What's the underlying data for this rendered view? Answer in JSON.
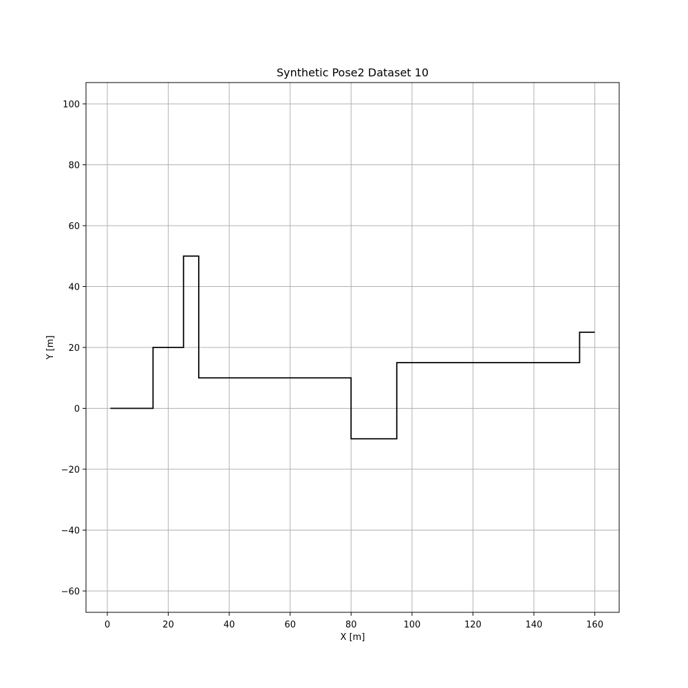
{
  "chart_data": {
    "type": "line",
    "title": "Synthetic Pose2 Dataset 10",
    "xlabel": "X [m]",
    "ylabel": "Y [m]",
    "xlim": [
      -7,
      168
    ],
    "ylim": [
      -67,
      107
    ],
    "xticks": [
      0,
      20,
      40,
      60,
      80,
      100,
      120,
      140,
      160
    ],
    "yticks": [
      -60,
      -40,
      -20,
      0,
      20,
      40,
      60,
      80,
      100
    ],
    "grid": true,
    "series": [
      {
        "color": "#000000",
        "x": [
          1,
          15,
          15,
          25,
          25,
          30,
          30,
          80,
          80,
          95,
          95,
          155,
          155,
          160
        ],
        "y": [
          0,
          0,
          20,
          20,
          50,
          50,
          10,
          10,
          -10,
          -10,
          15,
          15,
          25,
          25
        ]
      }
    ]
  }
}
